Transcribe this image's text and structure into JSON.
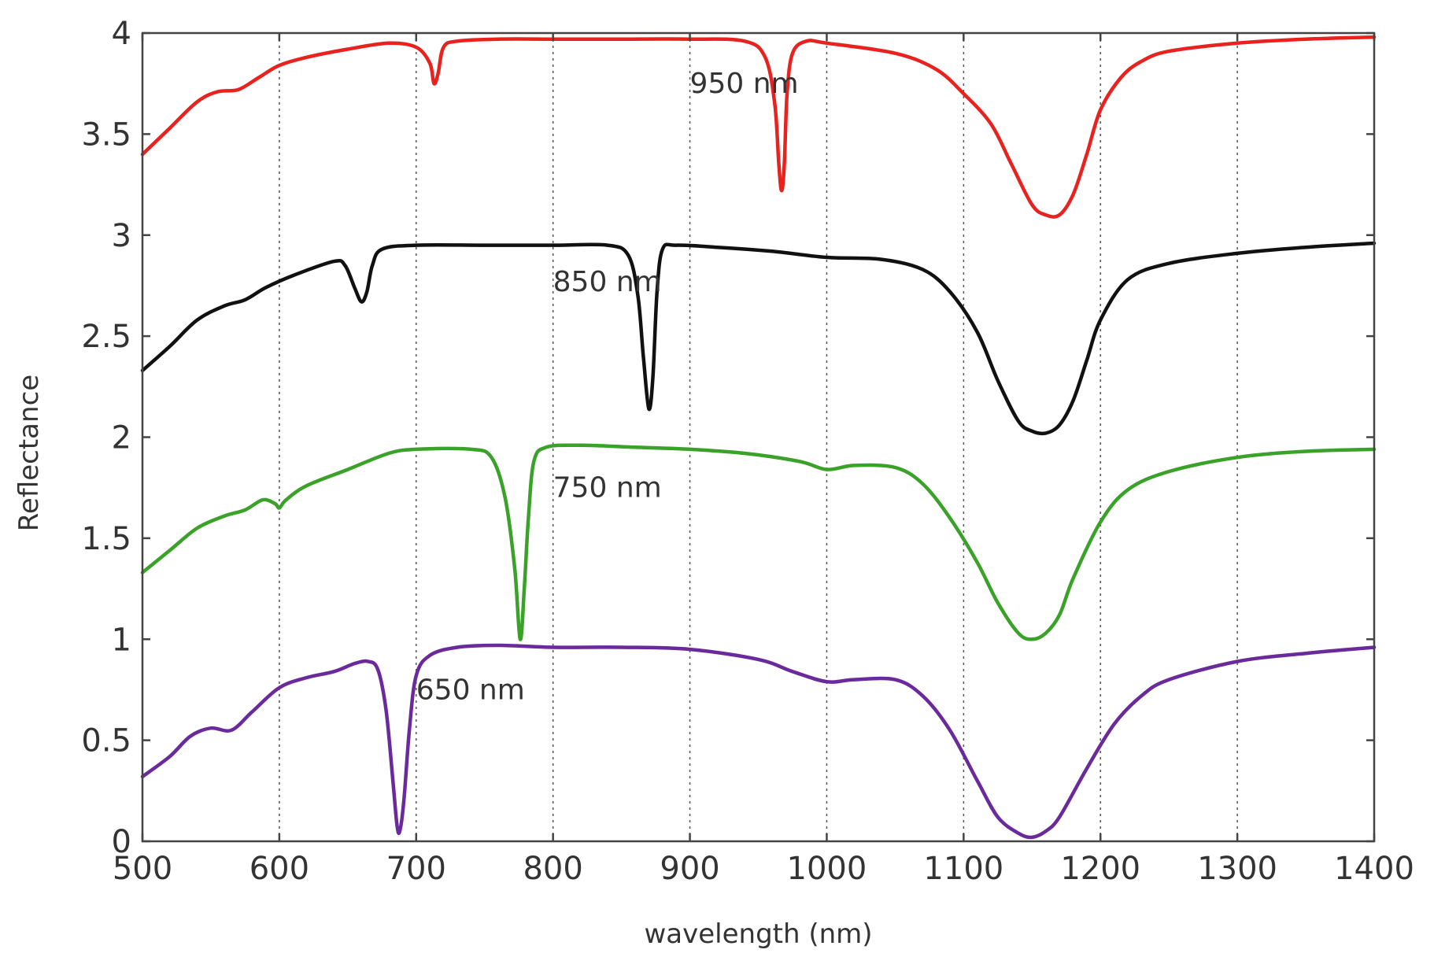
{
  "chart_data": {
    "type": "line",
    "title": "",
    "xlabel": "wavelength (nm)",
    "ylabel": "Reflectance",
    "xlim": [
      500,
      1400
    ],
    "ylim": [
      0,
      4
    ],
    "xticks": [
      500,
      600,
      700,
      800,
      900,
      1000,
      1100,
      1200,
      1300,
      1400
    ],
    "yticks": [
      0,
      0.5,
      1,
      1.5,
      2,
      2.5,
      3,
      3.5,
      4
    ],
    "xtick_labels": [
      "500",
      "600",
      "700",
      "800",
      "900",
      "1000",
      "1100",
      "1200",
      "1300",
      "1400"
    ],
    "ytick_labels": [
      "0",
      "0.5",
      "1",
      "1.5",
      "2",
      "2.5",
      "3",
      "3.5",
      "4"
    ],
    "grid": "vertical dotted",
    "series": [
      {
        "name": "950 nm",
        "annotation": "950 nm",
        "annotation_at": [
          900,
          3.75
        ],
        "color": "#e8231f",
        "x": [
          500,
          520,
          540,
          555,
          570,
          585,
          600,
          620,
          650,
          680,
          700,
          710,
          713,
          716,
          720,
          730,
          760,
          800,
          850,
          900,
          940,
          955,
          962,
          965,
          967,
          969,
          971,
          975,
          985,
          1000,
          1050,
          1080,
          1100,
          1120,
          1135,
          1150,
          1160,
          1170,
          1180,
          1190,
          1200,
          1215,
          1230,
          1250,
          1300,
          1350,
          1400
        ],
        "y": [
          3.4,
          3.53,
          3.66,
          3.71,
          3.72,
          3.78,
          3.84,
          3.88,
          3.92,
          3.95,
          3.93,
          3.85,
          3.75,
          3.8,
          3.93,
          3.96,
          3.97,
          3.97,
          3.97,
          3.97,
          3.96,
          3.88,
          3.65,
          3.35,
          3.22,
          3.35,
          3.7,
          3.9,
          3.96,
          3.95,
          3.9,
          3.82,
          3.7,
          3.55,
          3.35,
          3.15,
          3.1,
          3.1,
          3.2,
          3.4,
          3.62,
          3.78,
          3.86,
          3.91,
          3.95,
          3.97,
          3.98
        ]
      },
      {
        "name": "850 nm",
        "annotation": "850 nm",
        "annotation_at": [
          800,
          2.77
        ],
        "color": "#111111",
        "x": [
          500,
          520,
          540,
          560,
          575,
          590,
          610,
          640,
          648,
          655,
          660,
          664,
          668,
          675,
          700,
          750,
          800,
          840,
          855,
          862,
          866,
          870,
          873,
          876,
          880,
          890,
          920,
          960,
          1000,
          1040,
          1070,
          1090,
          1110,
          1125,
          1140,
          1150,
          1160,
          1170,
          1180,
          1190,
          1200,
          1220,
          1250,
          1300,
          1350,
          1400
        ],
        "y": [
          2.33,
          2.45,
          2.58,
          2.65,
          2.68,
          2.74,
          2.8,
          2.87,
          2.85,
          2.74,
          2.67,
          2.72,
          2.85,
          2.93,
          2.95,
          2.95,
          2.95,
          2.95,
          2.9,
          2.7,
          2.4,
          2.14,
          2.3,
          2.72,
          2.93,
          2.95,
          2.94,
          2.92,
          2.89,
          2.88,
          2.83,
          2.72,
          2.52,
          2.28,
          2.08,
          2.03,
          2.02,
          2.06,
          2.18,
          2.38,
          2.58,
          2.78,
          2.86,
          2.91,
          2.94,
          2.96
        ]
      },
      {
        "name": "750 nm",
        "annotation": "750 nm",
        "annotation_at": [
          800,
          1.75
        ],
        "color": "#3aa229",
        "x": [
          500,
          520,
          540,
          560,
          575,
          588,
          597,
          600,
          605,
          620,
          650,
          680,
          700,
          740,
          755,
          765,
          772,
          776,
          779,
          782,
          786,
          795,
          820,
          860,
          900,
          940,
          980,
          1000,
          1020,
          1050,
          1070,
          1090,
          1110,
          1125,
          1140,
          1150,
          1160,
          1170,
          1180,
          1200,
          1220,
          1250,
          1300,
          1350,
          1400
        ],
        "y": [
          1.33,
          1.44,
          1.55,
          1.61,
          1.64,
          1.69,
          1.67,
          1.65,
          1.69,
          1.76,
          1.84,
          1.92,
          1.94,
          1.94,
          1.9,
          1.7,
          1.35,
          1.0,
          1.25,
          1.6,
          1.88,
          1.95,
          1.96,
          1.95,
          1.94,
          1.92,
          1.88,
          1.84,
          1.86,
          1.85,
          1.77,
          1.6,
          1.38,
          1.18,
          1.03,
          1.0,
          1.03,
          1.12,
          1.3,
          1.58,
          1.74,
          1.83,
          1.9,
          1.93,
          1.94
        ]
      },
      {
        "name": "650 nm",
        "annotation": "650 nm",
        "annotation_at": [
          700,
          0.75
        ],
        "color": "#6b2a9b",
        "x": [
          500,
          520,
          535,
          550,
          565,
          580,
          600,
          620,
          640,
          655,
          665,
          672,
          678,
          683,
          686,
          688,
          691,
          695,
          700,
          710,
          730,
          760,
          800,
          850,
          900,
          950,
          975,
          1000,
          1020,
          1050,
          1070,
          1090,
          1110,
          1125,
          1140,
          1150,
          1160,
          1170,
          1190,
          1210,
          1230,
          1250,
          1300,
          1350,
          1400
        ],
        "y": [
          0.32,
          0.42,
          0.52,
          0.56,
          0.55,
          0.64,
          0.76,
          0.81,
          0.84,
          0.88,
          0.89,
          0.85,
          0.65,
          0.3,
          0.08,
          0.05,
          0.2,
          0.55,
          0.82,
          0.92,
          0.96,
          0.97,
          0.96,
          0.96,
          0.95,
          0.9,
          0.84,
          0.79,
          0.8,
          0.8,
          0.72,
          0.55,
          0.3,
          0.12,
          0.04,
          0.02,
          0.05,
          0.12,
          0.36,
          0.58,
          0.72,
          0.8,
          0.89,
          0.93,
          0.96
        ]
      }
    ]
  }
}
